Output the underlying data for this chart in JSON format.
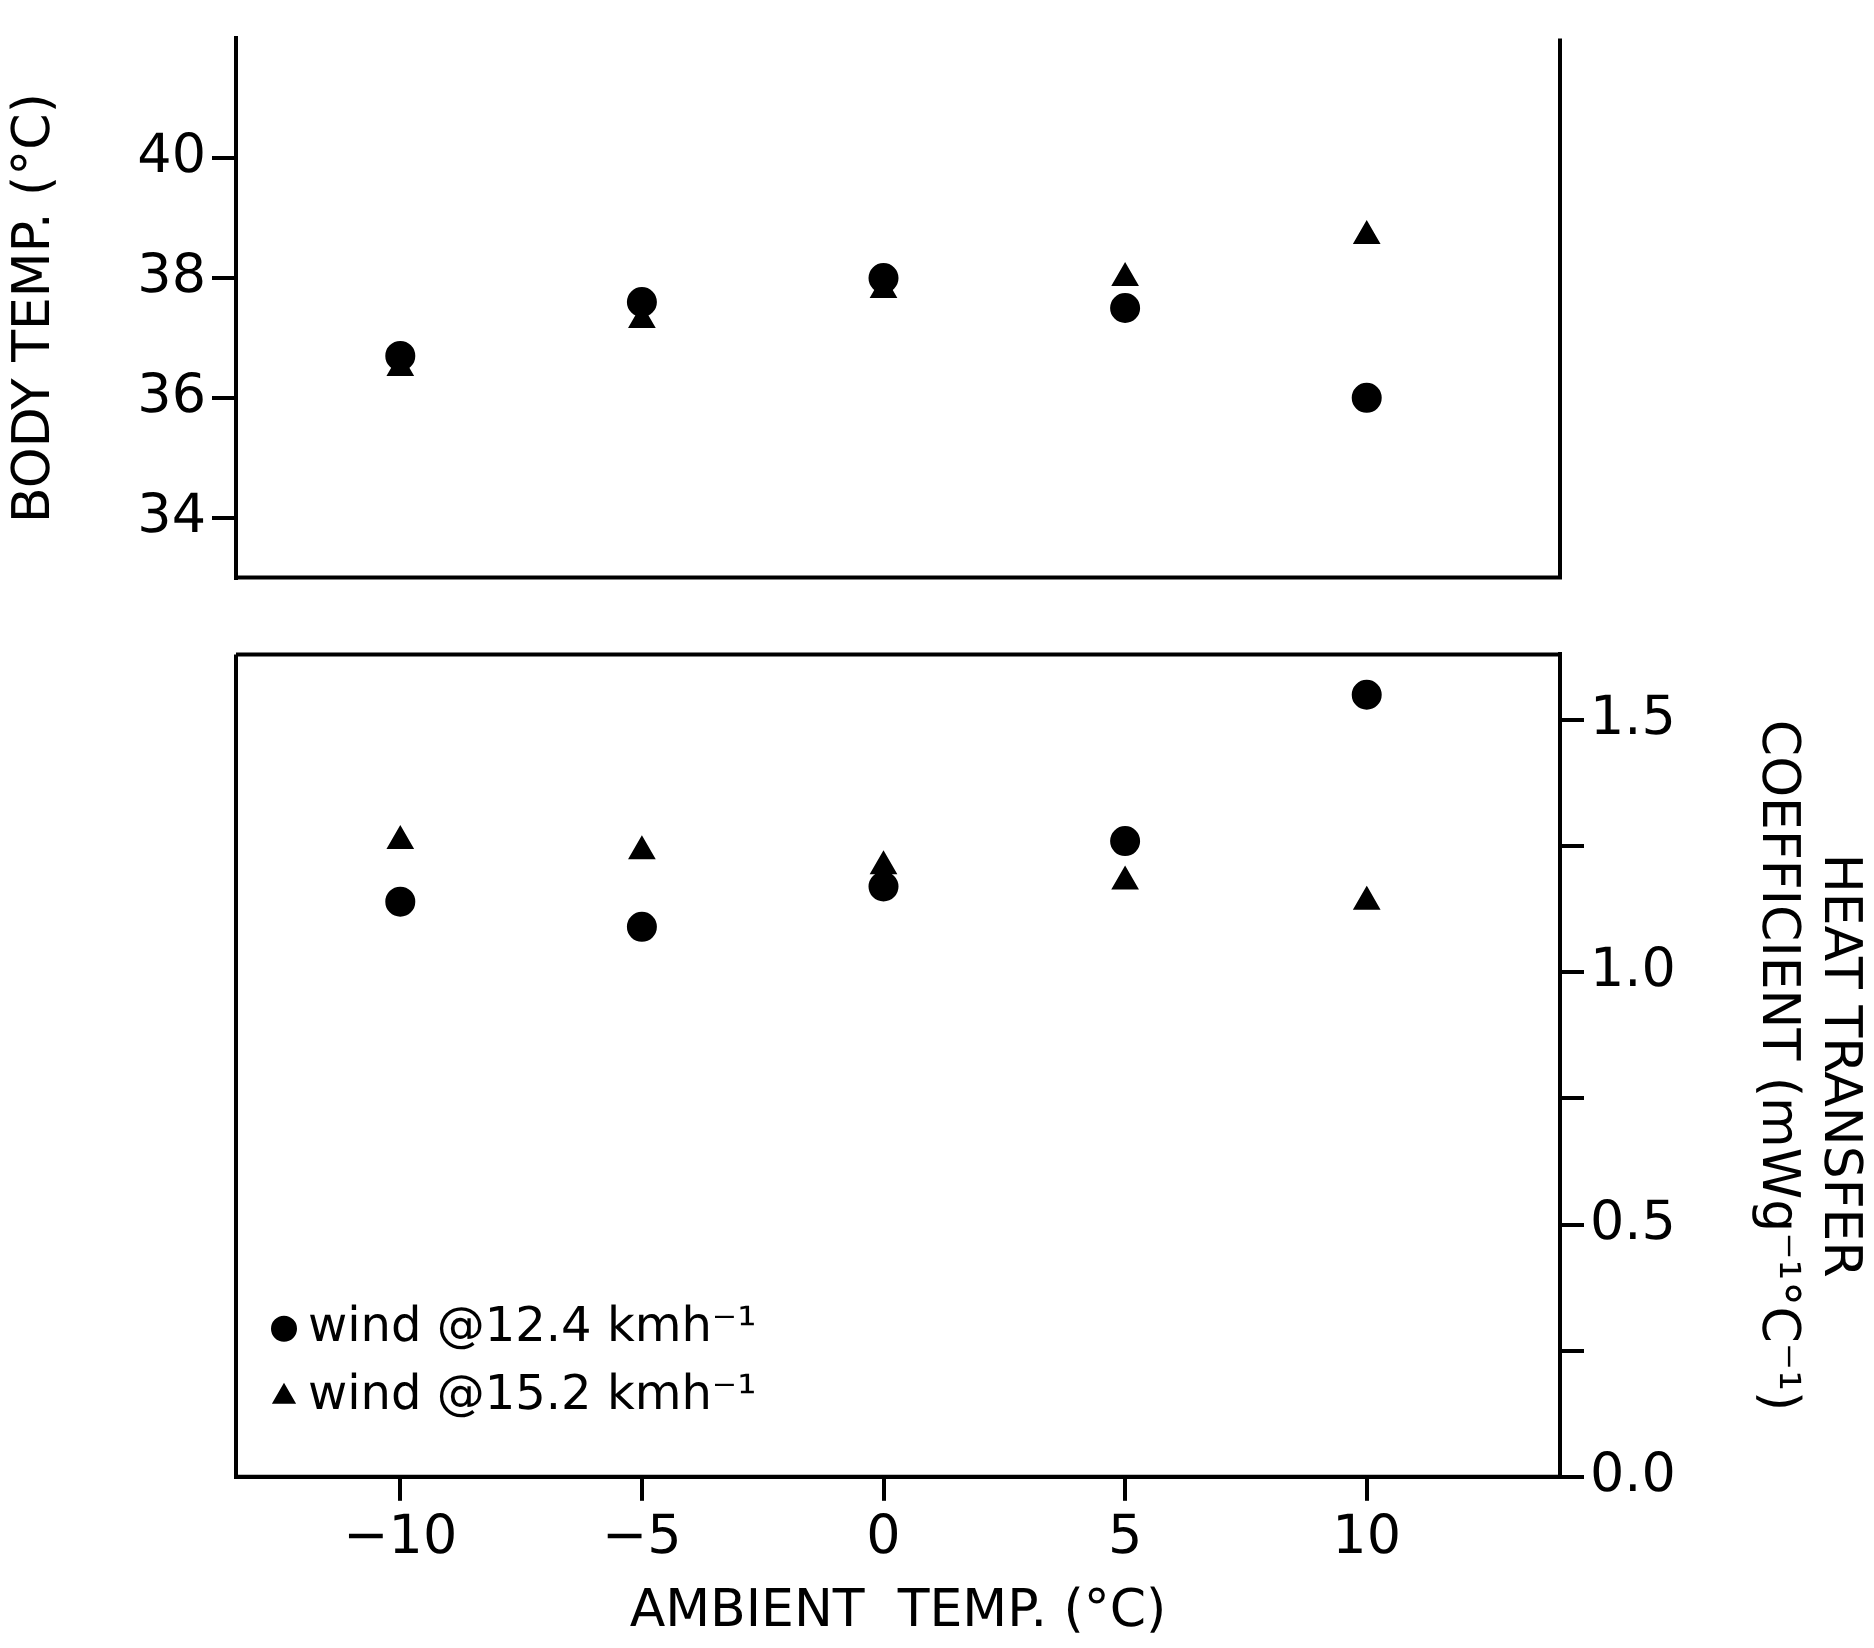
{
  "chart_data": [
    {
      "type": "scatter",
      "ylabel": "BODY TEMP. (°C)",
      "xlim": [
        -13.4,
        14
      ],
      "ylim": [
        33,
        42
      ],
      "yticks": [
        34,
        36,
        38,
        40
      ],
      "tick_labels": "y",
      "grid": false,
      "legend": false,
      "series": [
        {
          "color": "#000000",
          "marker": "circle",
          "x": [
            -10,
            -5,
            0,
            5,
            10
          ],
          "values": [
            36.7,
            37.6,
            38.0,
            37.5,
            36.0
          ]
        },
        {
          "color": "#000000",
          "marker": "triangle",
          "x": [
            -10,
            -5,
            0,
            5,
            10
          ],
          "values": [
            36.5,
            37.3,
            37.8,
            38.0,
            38.7
          ]
        }
      ]
    },
    {
      "type": "scatter",
      "xlabel": "AMBIENT  TEMP. (°C)",
      "y2label": "HEAT TRANSFER\nCOEFFICIENT (mWg⁻¹°C⁻¹)",
      "xlim": [
        -13.4,
        14
      ],
      "xticks": [
        {
          "value": -10,
          "label": "−10"
        },
        {
          "value": -5,
          "label": "−5"
        },
        0,
        5,
        10
      ],
      "y2lim": [
        0,
        1.63
      ],
      "y2ticks": [
        {
          "value": 0,
          "label": "0.0"
        },
        {
          "value": 0.25,
          "label": null
        },
        {
          "value": 0.5,
          "label": "0.5"
        },
        {
          "value": 0.75,
          "label": null
        },
        {
          "value": 1,
          "label": "1.0"
        },
        {
          "value": 1.25,
          "label": null
        },
        1.5
      ],
      "grid": false,
      "legend": "bottom left",
      "series": [
        {
          "name": "wind @12.4 kmh⁻¹",
          "color": "#000000",
          "marker": "circle",
          "axis": "y2",
          "x": [
            -10,
            -5,
            0,
            5,
            10
          ],
          "values": [
            1.14,
            1.09,
            1.17,
            1.26,
            1.55
          ]
        },
        {
          "name": "wind @15.2 kmh⁻¹",
          "color": "#000000",
          "marker": "triangle",
          "axis": "y2",
          "x": [
            -10,
            -5,
            0,
            5,
            10
          ],
          "values": [
            1.26,
            1.24,
            1.21,
            1.18,
            1.14
          ]
        }
      ]
    }
  ]
}
